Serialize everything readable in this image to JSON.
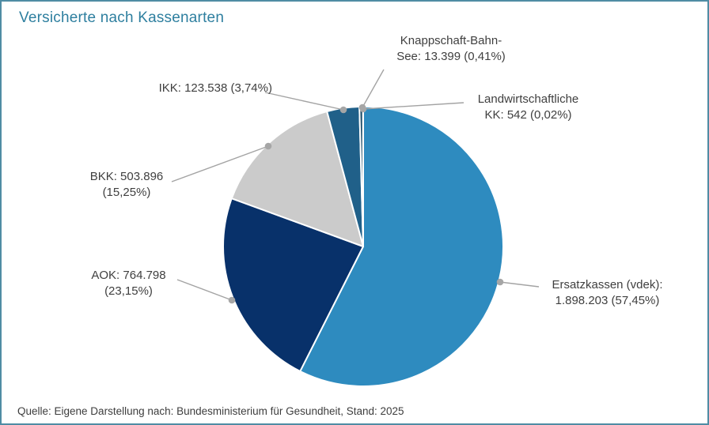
{
  "title": "Versicherte nach Kassenarten",
  "chart_data": {
    "type": "pie",
    "title": "Versicherte nach Kassenarten",
    "start_angle_deg": 0,
    "direction": "clockwise",
    "legend": "none (callout data labels with leader lines)",
    "slices": [
      {
        "name": "Ersatzkassen (vdek)",
        "value": 1898203,
        "pct": 57.45,
        "color": "#2e8bbf",
        "label_line1": "Ersatzkassen (vdek):",
        "label_line2": "1.898.203 (57,45%)"
      },
      {
        "name": "AOK",
        "value": 764798,
        "pct": 23.15,
        "color": "#08316a",
        "label_line1": "AOK: 764.798",
        "label_line2": "(23,15%)"
      },
      {
        "name": "BKK",
        "value": 503896,
        "pct": 15.25,
        "color": "#cbcbcb",
        "label_line1": "BKK: 503.896",
        "label_line2": "(15,25%)"
      },
      {
        "name": "IKK",
        "value": 123538,
        "pct": 3.74,
        "color": "#206089",
        "label_line1": "IKK: 123.538 (3,74%)",
        "label_line2": ""
      },
      {
        "name": "Knappschaft-Bahn-See",
        "value": 13399,
        "pct": 0.41,
        "color": "#1d4d69",
        "label_line1": "Knappschaft-Bahn-",
        "label_line2": "See: 13.399 (0,41%)"
      },
      {
        "name": "Landwirtschaftliche KK",
        "value": 542,
        "pct": 0.02,
        "color": "#12374f",
        "label_line1": "Landwirtschaftliche",
        "label_line2": "KK: 542 (0,02%)"
      }
    ],
    "source": "Quelle: Eigene Darstellung nach: Bundesministerium für Gesundheit, Stand: 2025"
  },
  "colors": {
    "frame_border": "#4f8ca4",
    "title_text": "#2e7f9f",
    "label_text": "#3f3f3f",
    "leader_line": "#a3a3a3",
    "leader_dot": "#a6a6a6",
    "slice_gap": "#ffffff"
  }
}
